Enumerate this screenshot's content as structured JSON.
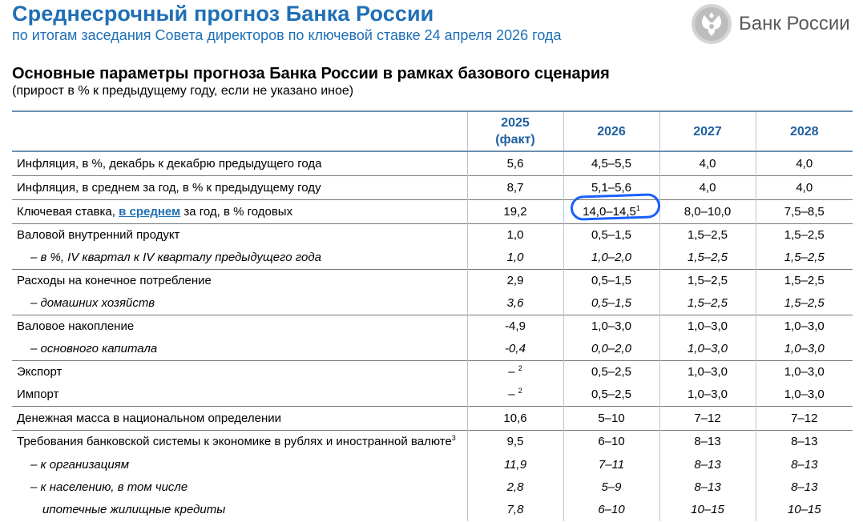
{
  "header": {
    "title": "Среднесрочный прогноз Банка России",
    "subtitle": "по итогам заседания Совета директоров по ключевой ставке 24 апреля 2026 года",
    "logo_text": "Банк России"
  },
  "section": {
    "title": "Основные параметры прогноза Банка России в рамках базового сценария",
    "note": "(прирост в % к предыдущему году, если не указано иное)"
  },
  "table": {
    "columns": [
      {
        "year": "2025",
        "sub": "(факт)"
      },
      {
        "year": "2026"
      },
      {
        "year": "2027"
      },
      {
        "year": "2028"
      }
    ],
    "rows": [
      {
        "label": "Инфляция, в %, декабрь к декабрю предыдущего года",
        "values": [
          "5,6",
          "4,5–5,5",
          "4,0",
          "4,0"
        ]
      },
      {
        "label": "Инфляция, в среднем за год, в % к предыдущему году",
        "values": [
          "8,7",
          "5,1–5,6",
          "4,0",
          "4,0"
        ]
      },
      {
        "label_pre": "Ключевая ставка, ",
        "label_link": "в среднем",
        "label_post": " за год, в % годовых",
        "values": [
          "19,2",
          "14,0–14,5",
          "8,0–10,0",
          "7,5–8,5"
        ],
        "footnote": "1"
      },
      {
        "label": "Валовой внутренний продукт",
        "values": [
          "1,0",
          "0,5–1,5",
          "1,5–2,5",
          "1,5–2,5"
        ]
      },
      {
        "label": "– в %, IV квартал к IV кварталу предыдущего года",
        "values": [
          "1,0",
          "1,0–2,0",
          "1,5–2,5",
          "1,5–2,5"
        ]
      },
      {
        "label": "Расходы на конечное потребление",
        "values": [
          "2,9",
          "0,5–1,5",
          "1,5–2,5",
          "1,5–2,5"
        ]
      },
      {
        "label": "– домашних хозяйств",
        "values": [
          "3,6",
          "0,5–1,5",
          "1,5–2,5",
          "1,5–2,5"
        ]
      },
      {
        "label": "Валовое накопление",
        "values": [
          "-4,9",
          "1,0–3,0",
          "1,0–3,0",
          "1,0–3,0"
        ]
      },
      {
        "label": "– основного капитала",
        "values": [
          "-0,4",
          "0,0–2,0",
          "1,0–3,0",
          "1,0–3,0"
        ]
      },
      {
        "label": "Экспорт",
        "values": [
          "–",
          "0,5–2,5",
          "1,0–3,0",
          "1,0–3,0"
        ],
        "footnote": "2"
      },
      {
        "label": "Импорт",
        "values": [
          "–",
          "0,5–2,5",
          "1,0–3,0",
          "1,0–3,0"
        ],
        "footnote": "2"
      },
      {
        "label": "Денежная масса в национальном определении",
        "values": [
          "10,6",
          "5–10",
          "7–12",
          "7–12"
        ]
      },
      {
        "label": "Требования банковской системы к экономике в рублях и иностранной валюте",
        "label_footnote": "3",
        "values": [
          "9,5",
          "6–10",
          "8–13",
          "8–13"
        ]
      },
      {
        "label": "–  к организациям",
        "values": [
          "11,9",
          "7–11",
          "8–13",
          "8–13"
        ]
      },
      {
        "label": "–  к населению, в том числе",
        "values": [
          "2,8",
          "5–9",
          "8–13",
          "8–13"
        ]
      },
      {
        "label": "ипотечные жилищные кредиты",
        "values": [
          "7,8",
          "6–10",
          "10–15",
          "10–15"
        ]
      }
    ]
  },
  "colors": {
    "accent": "#1f6fb5",
    "highlight": "#1a5fff"
  }
}
